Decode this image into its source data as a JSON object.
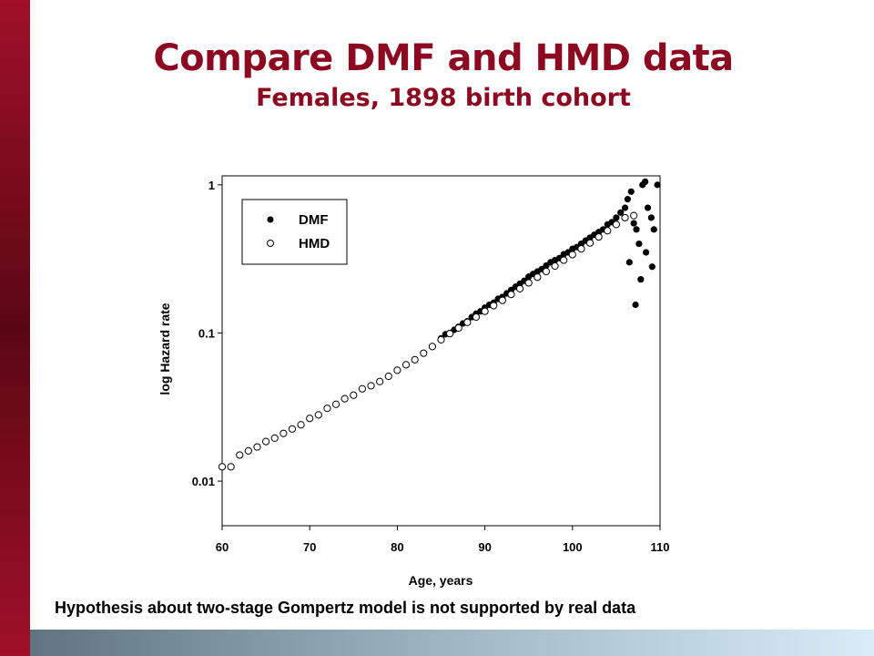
{
  "slide": {
    "title": "Compare DMF and HMD data",
    "subtitle": "Females, 1898 birth cohort",
    "caption": "Hypothesis about two-stage Gompertz model is not supported by real data",
    "accent_color": "#8b0a22",
    "left_bar_color": "#7a0b1e",
    "bottom_bar_colors": [
      "#5f7480",
      "#d8ecf8"
    ]
  },
  "chart_data": {
    "type": "scatter",
    "title": "",
    "xlabel": "Age, years",
    "ylabel": "log Hazard rate",
    "xlim": [
      60,
      110
    ],
    "ylim": [
      0.005,
      1.15
    ],
    "y_scale": "log",
    "x_ticks": [
      60,
      70,
      80,
      90,
      100,
      110
    ],
    "x_tick_labels": [
      "60",
      "70",
      "80",
      "90",
      "100",
      "110"
    ],
    "y_ticks": [
      0.01,
      0.1,
      1
    ],
    "y_tick_labels": [
      "0.01",
      "0.1",
      "1"
    ],
    "grid": false,
    "legend_position": "top-left",
    "series": [
      {
        "name": "DMF",
        "marker": "filled-circle",
        "color": "#000000",
        "x": [
          85,
          85.5,
          86,
          86.5,
          87,
          87.5,
          88,
          88.5,
          89,
          89.5,
          90,
          90.5,
          91,
          91.5,
          92,
          92.5,
          93,
          93.5,
          94,
          94.5,
          95,
          95.5,
          96,
          96.5,
          97,
          97.5,
          98,
          98.5,
          99,
          99.5,
          100,
          100.5,
          101,
          101.5,
          102,
          102.5,
          103,
          103.5,
          104,
          104.5,
          105,
          105.5,
          106,
          106.3,
          106.7,
          107,
          107.3,
          107.6,
          108,
          108.3,
          108.6,
          109,
          109.3,
          109.7,
          106.5,
          107.2,
          107.8,
          108.4,
          109.1
        ],
        "y": [
          0.092,
          0.098,
          0.1,
          0.105,
          0.11,
          0.116,
          0.12,
          0.128,
          0.135,
          0.14,
          0.148,
          0.155,
          0.16,
          0.17,
          0.175,
          0.185,
          0.195,
          0.205,
          0.215,
          0.225,
          0.24,
          0.25,
          0.26,
          0.27,
          0.285,
          0.3,
          0.31,
          0.32,
          0.34,
          0.35,
          0.37,
          0.38,
          0.4,
          0.42,
          0.44,
          0.46,
          0.48,
          0.5,
          0.54,
          0.56,
          0.6,
          0.65,
          0.7,
          0.8,
          0.9,
          0.55,
          0.5,
          0.4,
          1.0,
          1.05,
          0.7,
          0.6,
          0.5,
          1.0,
          0.3,
          0.155,
          0.23,
          0.35,
          0.28
        ]
      },
      {
        "name": "HMD",
        "marker": "open-circle",
        "color": "#000000",
        "x": [
          60,
          61,
          62,
          63,
          64,
          65,
          66,
          67,
          68,
          69,
          70,
          71,
          72,
          73,
          74,
          75,
          76,
          77,
          78,
          79,
          80,
          81,
          82,
          83,
          84,
          85,
          86,
          87,
          88,
          89,
          90,
          91,
          92,
          93,
          94,
          95,
          96,
          97,
          98,
          99,
          100,
          101,
          102,
          103,
          104,
          105,
          106,
          107
        ],
        "y": [
          0.0125,
          0.0125,
          0.015,
          0.016,
          0.017,
          0.0185,
          0.0195,
          0.021,
          0.0225,
          0.024,
          0.0265,
          0.028,
          0.031,
          0.033,
          0.036,
          0.038,
          0.042,
          0.044,
          0.047,
          0.051,
          0.056,
          0.061,
          0.066,
          0.073,
          0.081,
          0.09,
          0.099,
          0.108,
          0.118,
          0.128,
          0.14,
          0.153,
          0.166,
          0.182,
          0.199,
          0.218,
          0.238,
          0.26,
          0.283,
          0.31,
          0.338,
          0.37,
          0.405,
          0.445,
          0.49,
          0.54,
          0.6,
          0.62
        ]
      }
    ]
  }
}
